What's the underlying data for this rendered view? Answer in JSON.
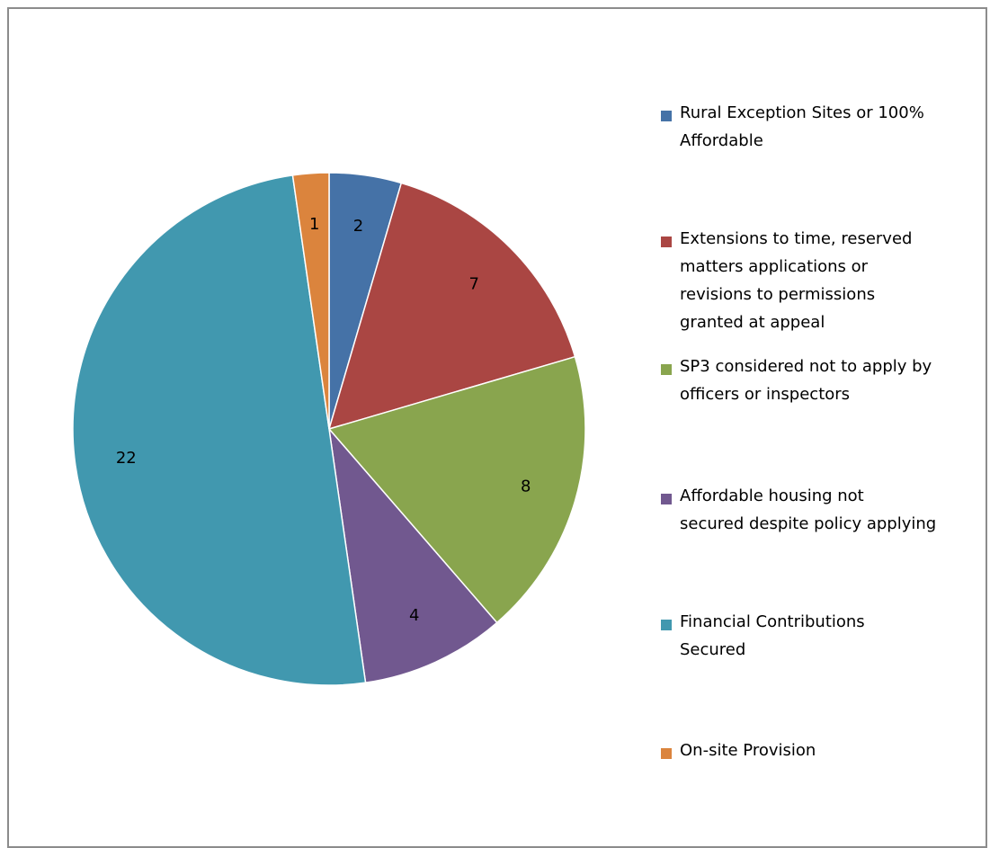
{
  "chart_data": {
    "type": "pie",
    "title": "",
    "categories": [
      "Rural Exception Sites or 100% Affordable",
      "Extensions to time, reserved matters applications or revisions to permissions granted at appeal",
      "SP3 considered not to apply by officers or inspectors",
      "Affordable housing not secured despite policy applying",
      "Financial Contributions Secured",
      "On-site Provision"
    ],
    "legend_labels": [
      "Rural Exception Sites or 100%\nAffordable",
      "Extensions to time, reserved\nmatters applications or\nrevisions to permissions\ngranted at appeal",
      "SP3 considered not to apply by\nofficers or inspectors",
      "Affordable housing not\nsecured despite policy applying",
      "Financial Contributions\nSecured",
      "On-site Provision"
    ],
    "values": [
      2,
      7,
      8,
      4,
      22,
      1
    ],
    "colors": [
      "#4572A7",
      "#AA4643",
      "#89A54E",
      "#71588F",
      "#4198AF",
      "#DB843D"
    ],
    "legend_position": "right",
    "start_angle": "12 o'clock",
    "direction": "clockwise"
  }
}
